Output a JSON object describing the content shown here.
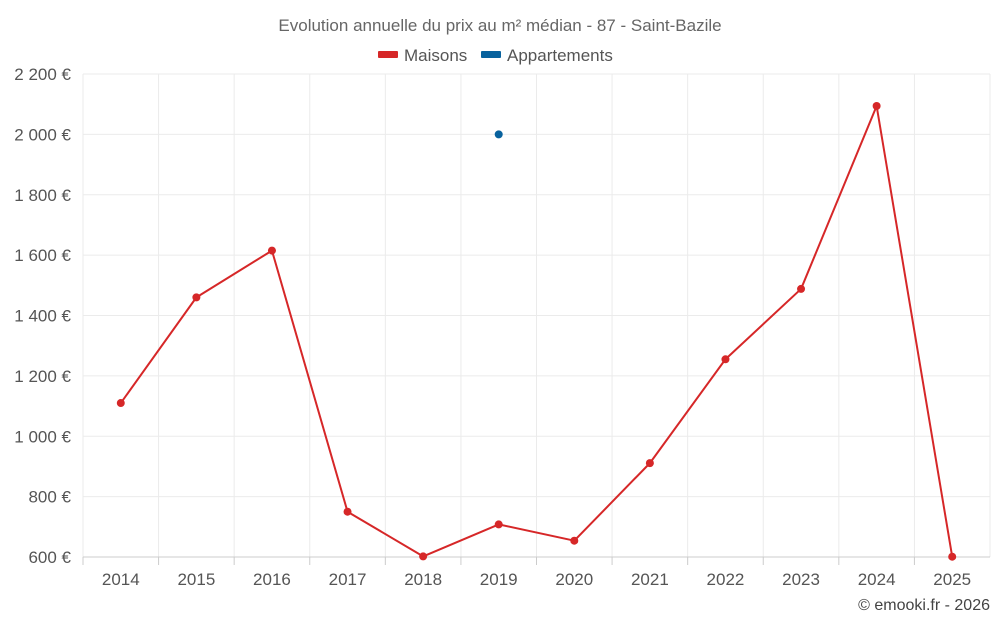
{
  "chart_data": {
    "type": "line",
    "title": "Evolution annuelle du prix au m² médian - 87 - Saint-Bazile",
    "categories": [
      "2014",
      "2015",
      "2016",
      "2017",
      "2018",
      "2019",
      "2020",
      "2021",
      "2022",
      "2023",
      "2024",
      "2025"
    ],
    "ylim": [
      600,
      2200
    ],
    "yticks": [
      600,
      800,
      1000,
      1200,
      1400,
      1600,
      1800,
      2000,
      2200
    ],
    "ytick_labels": [
      "600 €",
      "800 €",
      "1 000 €",
      "1 200 €",
      "1 400 €",
      "1 600 €",
      "1 800 €",
      "2 000 €",
      "2 200 €"
    ],
    "grid": true,
    "legend_position": "top-center",
    "series": [
      {
        "name": "Maisons",
        "color": "#d62728",
        "values": [
          1110,
          1460,
          1615,
          750,
          602,
          708,
          654,
          911,
          1255,
          1488,
          2094,
          601
        ]
      },
      {
        "name": "Appartements",
        "color": "#08629e",
        "values": [
          null,
          null,
          null,
          null,
          null,
          2000,
          null,
          null,
          null,
          null,
          null,
          null
        ]
      }
    ]
  },
  "credit": "© emooki.fr - 2026"
}
